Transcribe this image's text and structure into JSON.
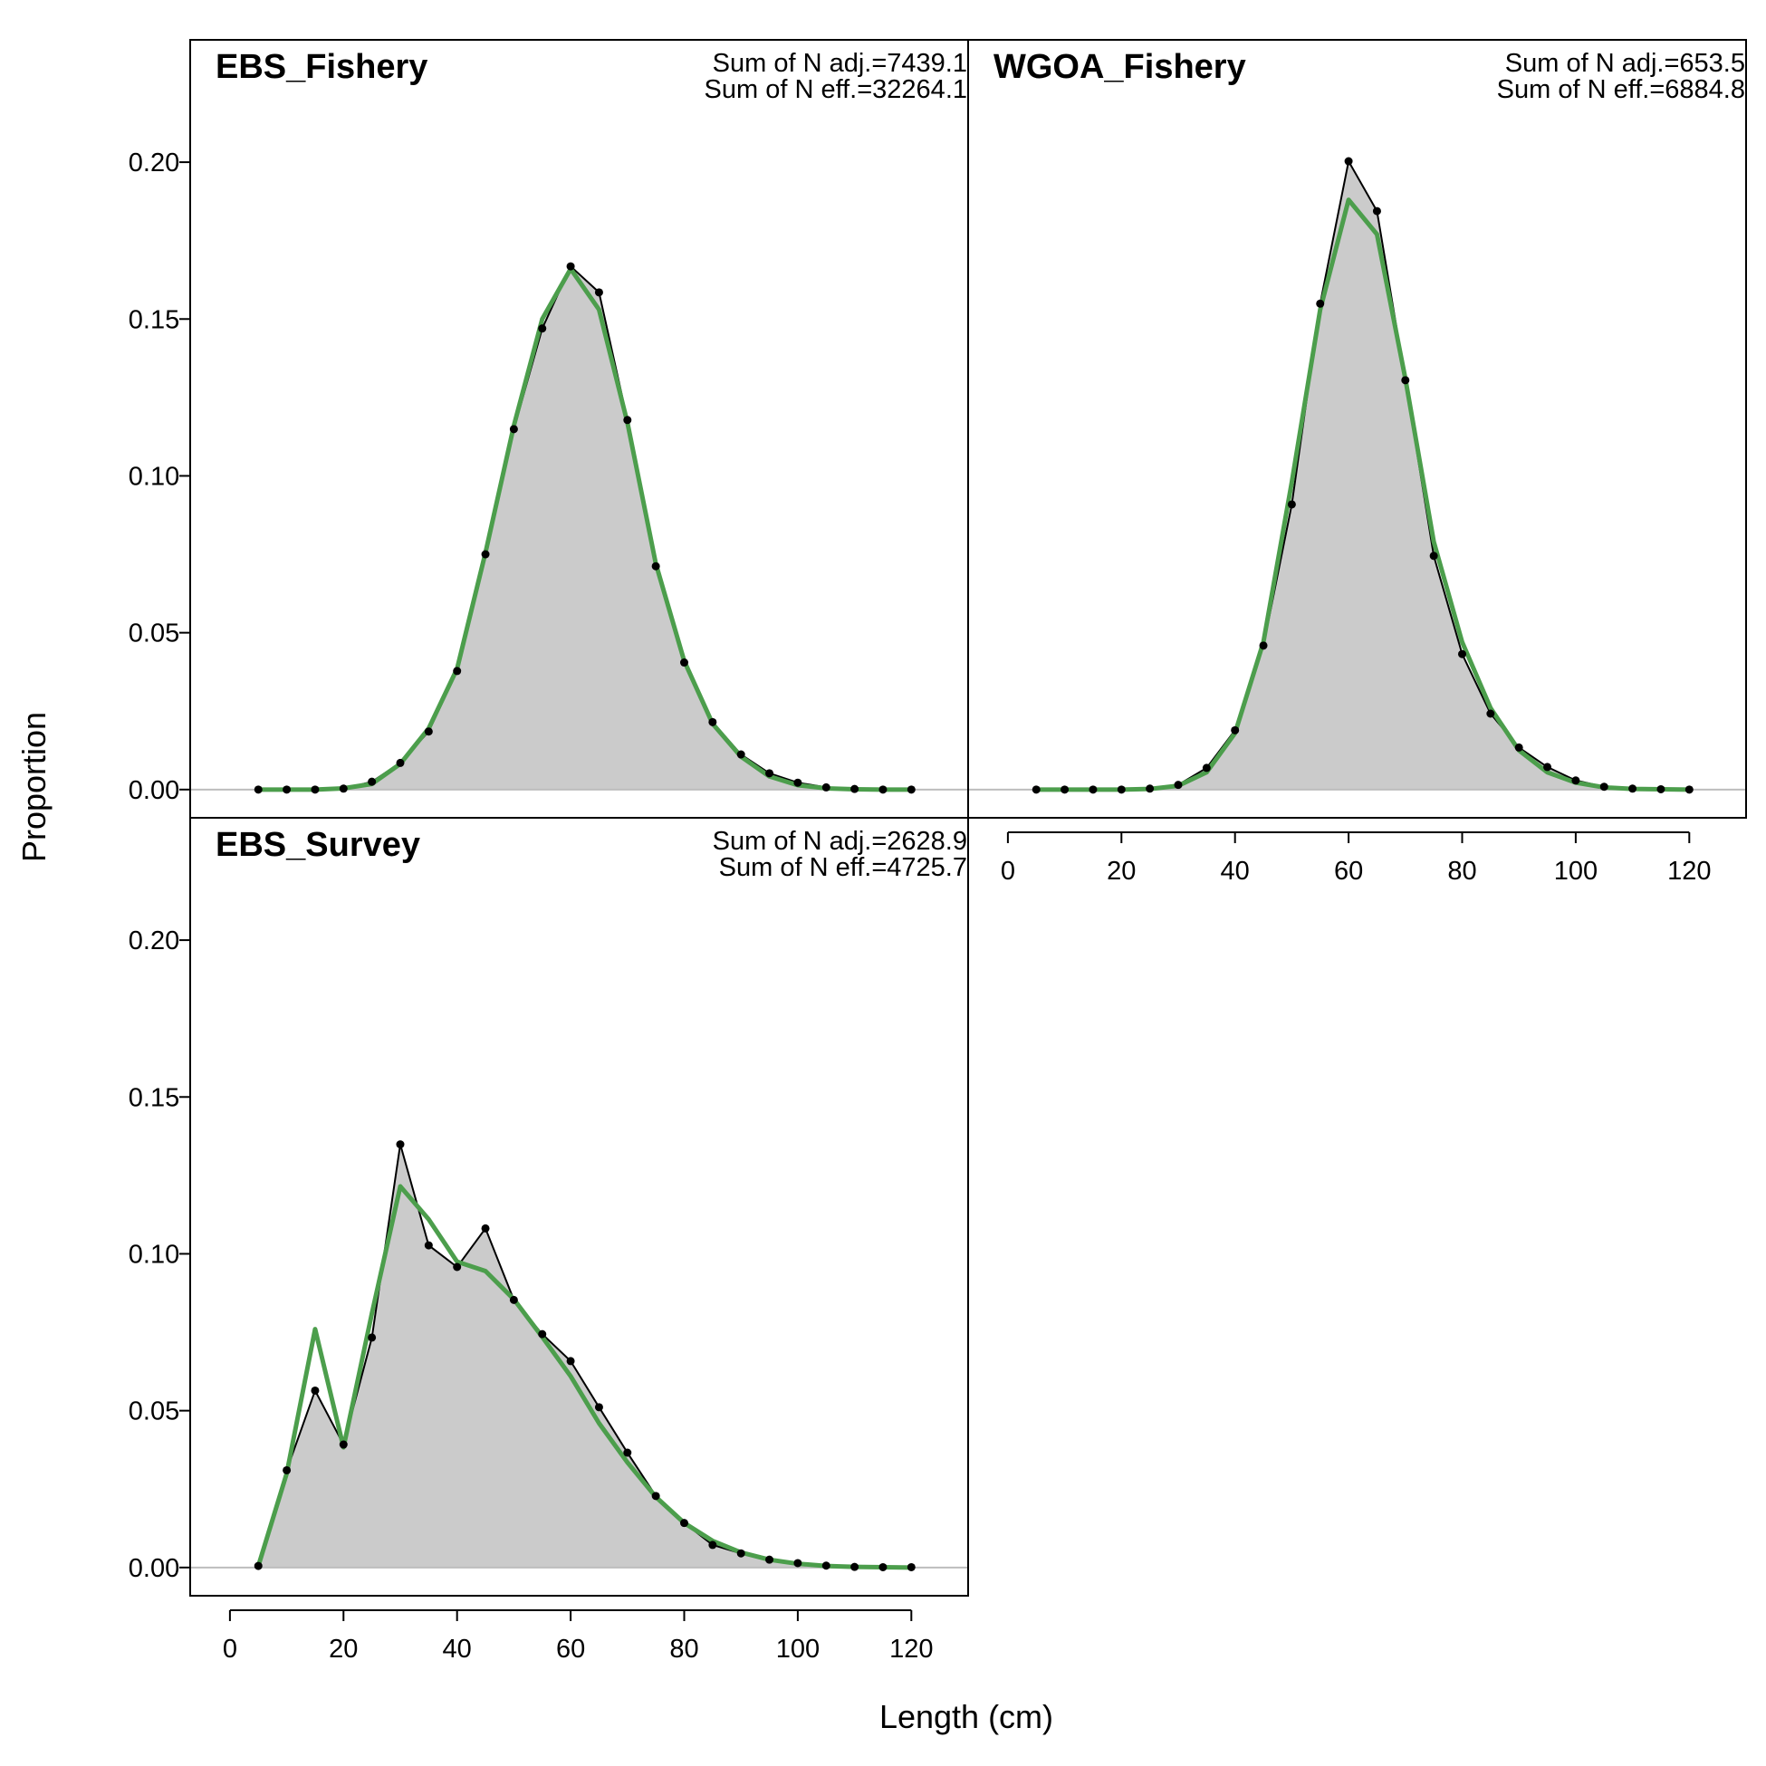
{
  "figure": {
    "ylabel": "Proportion",
    "xlabel": "Length (cm)"
  },
  "colors": {
    "obs_fill": "#cbcbcb",
    "obs_line": "#000000",
    "exp_line": "#4c9e4c",
    "zero_line": "#bdbdbd"
  },
  "chart_data": [
    {
      "type": "area",
      "title": "EBS_Fishery",
      "annotations": [
        "Sum of N adj.=7439.1",
        "Sum of N eff.=32264.1"
      ],
      "xlim": [
        -7,
        130
      ],
      "ylim": [
        -0.009,
        0.239
      ],
      "x_ticks": [],
      "y_ticks": [
        "0.00",
        "0.05",
        "0.10",
        "0.15",
        "0.20"
      ],
      "x": [
        5,
        10,
        15,
        20,
        25,
        30,
        35,
        40,
        45,
        50,
        55,
        60,
        65,
        70,
        75,
        80,
        85,
        90,
        95,
        100,
        105,
        110,
        115,
        120
      ],
      "series": [
        {
          "values": [
            0.0,
            0.0,
            0.0,
            0.0003,
            0.0025,
            0.0085,
            0.0185,
            0.0378,
            0.075,
            0.1149,
            0.147,
            0.1668,
            0.1585,
            0.1178,
            0.0712,
            0.0405,
            0.0215,
            0.0112,
            0.0052,
            0.0022,
            0.0007,
            0.0002,
            0.0,
            0.0
          ]
        },
        {
          "values": [
            0.0,
            0.0,
            0.0,
            0.0004,
            0.0018,
            0.0082,
            0.0195,
            0.0385,
            0.0755,
            0.116,
            0.15,
            0.166,
            0.153,
            0.117,
            0.072,
            0.041,
            0.021,
            0.0105,
            0.0042,
            0.0014,
            0.0004,
            0.0001,
            0.0,
            0.0
          ]
        }
      ]
    },
    {
      "type": "area",
      "title": "WGOA_Fishery",
      "annotations": [
        "Sum of N adj.=653.5",
        "Sum of N eff.=6884.8"
      ],
      "xlim": [
        -7,
        130
      ],
      "ylim": [
        -0.009,
        0.239
      ],
      "x_ticks": [
        "0",
        "20",
        "40",
        "60",
        "80",
        "100",
        "120"
      ],
      "y_ticks": [],
      "x": [
        5,
        10,
        15,
        20,
        25,
        30,
        35,
        40,
        45,
        50,
        55,
        60,
        65,
        70,
        75,
        80,
        85,
        90,
        95,
        100,
        105,
        110,
        115,
        120
      ],
      "series": [
        {
          "values": [
            0.0,
            0.0,
            0.0,
            0.0,
            0.0003,
            0.0015,
            0.0069,
            0.0189,
            0.0459,
            0.0909,
            0.1549,
            0.2003,
            0.1844,
            0.1305,
            0.0745,
            0.0432,
            0.0242,
            0.0134,
            0.0072,
            0.0029,
            0.0009,
            0.0003,
            0.0001,
            0.0
          ]
        },
        {
          "values": [
            0.0,
            0.0,
            0.0,
            0.0,
            0.0002,
            0.0012,
            0.0055,
            0.018,
            0.047,
            0.098,
            0.153,
            0.188,
            0.177,
            0.131,
            0.079,
            0.047,
            0.026,
            0.0125,
            0.0055,
            0.0022,
            0.0007,
            0.0002,
            0.0001,
            0.0
          ]
        }
      ]
    },
    {
      "type": "area",
      "title": "EBS_Survey",
      "annotations": [
        "Sum of N adj.=2628.9",
        "Sum of N eff.=4725.7"
      ],
      "xlim": [
        -7,
        130
      ],
      "ylim": [
        -0.009,
        0.239
      ],
      "x_ticks": [
        "0",
        "20",
        "40",
        "60",
        "80",
        "100",
        "120"
      ],
      "y_ticks": [
        "0.00",
        "0.05",
        "0.10",
        "0.15",
        "0.20"
      ],
      "x": [
        5,
        10,
        15,
        20,
        25,
        30,
        35,
        40,
        45,
        50,
        55,
        60,
        65,
        70,
        75,
        80,
        85,
        90,
        95,
        100,
        105,
        110,
        115,
        120
      ],
      "series": [
        {
          "values": [
            0.0005,
            0.031,
            0.0564,
            0.0392,
            0.0733,
            0.1349,
            0.1027,
            0.0958,
            0.1081,
            0.0853,
            0.0744,
            0.0658,
            0.0511,
            0.0366,
            0.0228,
            0.0142,
            0.0072,
            0.0045,
            0.0025,
            0.0014,
            0.0006,
            0.0002,
            0.0001,
            0.0001
          ]
        },
        {
          "values": [
            0.0005,
            0.03,
            0.076,
            0.0383,
            0.081,
            0.1215,
            0.111,
            0.0975,
            0.0945,
            0.0855,
            0.0735,
            0.061,
            0.046,
            0.0335,
            0.0225,
            0.0142,
            0.0085,
            0.0048,
            0.0025,
            0.0012,
            0.0005,
            0.0002,
            0.0001,
            0.0
          ]
        }
      ]
    }
  ]
}
